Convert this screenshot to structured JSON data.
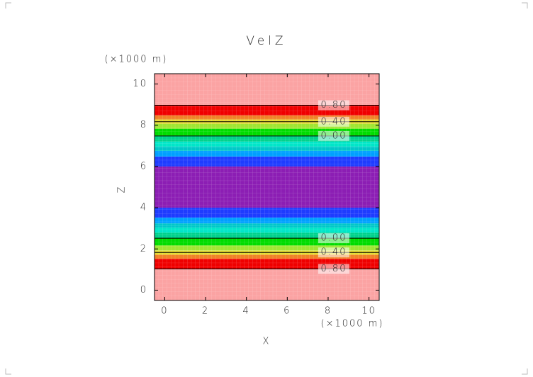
{
  "chart_data": {
    "type": "contour",
    "title": "VelZ",
    "x_label": "X",
    "y_label": "Z",
    "x_unit": "(×1000 m)",
    "y_unit": "(×1000 m)",
    "xlim": [
      -0.5,
      10.5
    ],
    "ylim": [
      -0.5,
      10.5
    ],
    "xticks": [
      0,
      2,
      4,
      6,
      8,
      10
    ],
    "yticks": [
      0,
      2,
      4,
      6,
      8,
      10
    ],
    "bands": [
      {
        "z": [
          -0.5,
          1.03
        ],
        "color": "#fba3a3"
      },
      {
        "z": [
          1.03,
          1.52
        ],
        "color": "#f00000"
      },
      {
        "z": [
          1.52,
          1.72
        ],
        "color": "#f08228"
      },
      {
        "z": [
          1.72,
          1.93
        ],
        "color": "#e6dc32"
      },
      {
        "z": [
          1.93,
          2.17
        ],
        "color": "#a0e632"
      },
      {
        "z": [
          2.17,
          2.52
        ],
        "color": "#00dc00"
      },
      {
        "z": [
          2.52,
          2.79
        ],
        "color": "#00d28c"
      },
      {
        "z": [
          2.79,
          3.03
        ],
        "color": "#00e6c8"
      },
      {
        "z": [
          3.03,
          3.24
        ],
        "color": "#00c8c8"
      },
      {
        "z": [
          3.24,
          3.52
        ],
        "color": "#00a0ff"
      },
      {
        "z": [
          3.52,
          4.0
        ],
        "color": "#1e3cff"
      },
      {
        "z": [
          4.0,
          6.0
        ],
        "color": "#8c1eb4"
      },
      {
        "z": [
          6.0,
          6.48
        ],
        "color": "#1e3cff"
      },
      {
        "z": [
          6.48,
          6.76
        ],
        "color": "#00a0ff"
      },
      {
        "z": [
          6.76,
          6.97
        ],
        "color": "#00c8c8"
      },
      {
        "z": [
          6.97,
          7.21
        ],
        "color": "#00e6c8"
      },
      {
        "z": [
          7.21,
          7.48
        ],
        "color": "#00d28c"
      },
      {
        "z": [
          7.48,
          7.83
        ],
        "color": "#00dc00"
      },
      {
        "z": [
          7.83,
          8.07
        ],
        "color": "#a0e632"
      },
      {
        "z": [
          8.07,
          8.28
        ],
        "color": "#e6dc32"
      },
      {
        "z": [
          8.28,
          8.48
        ],
        "color": "#f08228"
      },
      {
        "z": [
          8.48,
          8.97
        ],
        "color": "#f00000"
      },
      {
        "z": [
          8.97,
          10.5
        ],
        "color": "#fba3a3"
      }
    ],
    "contours": [
      {
        "z": 8.97,
        "label": "0.80"
      },
      {
        "z": 8.17,
        "label": "0.40"
      },
      {
        "z": 7.48,
        "label": "0.00"
      },
      {
        "z": 2.52,
        "label": "0.00"
      },
      {
        "z": 1.83,
        "label": "0.40"
      },
      {
        "z": 1.03,
        "label": "0.80"
      }
    ]
  }
}
